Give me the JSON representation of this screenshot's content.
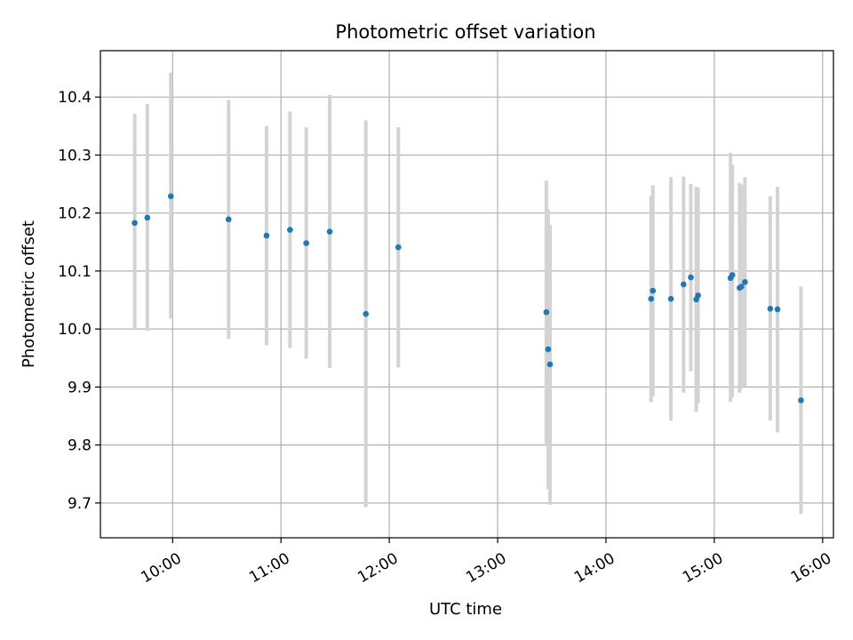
{
  "chart_data": {
    "type": "scatter",
    "title": "Photometric offset variation",
    "xlabel": "UTC time",
    "ylabel": "Photometric offset",
    "xlim": [
      "09:20",
      "16:06"
    ],
    "ylim": [
      9.64,
      10.48
    ],
    "x_ticks": [
      "10:00",
      "11:00",
      "12:00",
      "13:00",
      "14:00",
      "15:00",
      "16:00"
    ],
    "y_ticks": [
      9.7,
      9.8,
      9.9,
      10.0,
      10.1,
      10.2,
      10.3,
      10.4
    ],
    "y_tick_labels": [
      "9.7",
      "9.8",
      "9.9",
      "10.0",
      "10.1",
      "10.2",
      "10.3",
      "10.4"
    ],
    "grid": true,
    "colors": {
      "point": "#1f77b4",
      "errorbar": "#d3d3d3",
      "grid": "#b0b0b0"
    },
    "points": [
      {
        "x": "09:39",
        "y": 10.183,
        "low": 9.998,
        "high": 10.371
      },
      {
        "x": "09:46",
        "y": 10.192,
        "low": 9.997,
        "high": 10.388
      },
      {
        "x": "09:59",
        "y": 10.229,
        "low": 10.018,
        "high": 10.442
      },
      {
        "x": "10:31",
        "y": 10.189,
        "low": 9.983,
        "high": 10.395
      },
      {
        "x": "10:52",
        "y": 10.161,
        "low": 9.972,
        "high": 10.35
      },
      {
        "x": "11:05",
        "y": 10.171,
        "low": 9.967,
        "high": 10.375
      },
      {
        "x": "11:14",
        "y": 10.148,
        "low": 9.949,
        "high": 10.348
      },
      {
        "x": "11:27",
        "y": 10.168,
        "low": 9.933,
        "high": 10.404
      },
      {
        "x": "11:47",
        "y": 10.026,
        "low": 9.693,
        "high": 10.36
      },
      {
        "x": "12:05",
        "y": 10.141,
        "low": 9.934,
        "high": 10.348
      },
      {
        "x": "13:27",
        "y": 10.029,
        "low": 9.802,
        "high": 10.256
      },
      {
        "x": "13:28",
        "y": 9.965,
        "low": 9.724,
        "high": 10.207
      },
      {
        "x": "13:29",
        "y": 9.939,
        "low": 9.697,
        "high": 10.18
      },
      {
        "x": "14:25",
        "y": 10.052,
        "low": 9.874,
        "high": 10.23
      },
      {
        "x": "14:26",
        "y": 10.066,
        "low": 9.884,
        "high": 10.248
      },
      {
        "x": "14:36",
        "y": 10.052,
        "low": 9.842,
        "high": 10.262
      },
      {
        "x": "14:43",
        "y": 10.077,
        "low": 9.89,
        "high": 10.263
      },
      {
        "x": "14:47",
        "y": 10.089,
        "low": 9.927,
        "high": 10.25
      },
      {
        "x": "14:50",
        "y": 10.051,
        "low": 9.857,
        "high": 10.245
      },
      {
        "x": "14:51",
        "y": 10.058,
        "low": 9.872,
        "high": 10.244
      },
      {
        "x": "15:09",
        "y": 10.088,
        "low": 9.874,
        "high": 10.304
      },
      {
        "x": "15:10",
        "y": 10.093,
        "low": 9.882,
        "high": 10.283
      },
      {
        "x": "15:14",
        "y": 10.071,
        "low": 9.89,
        "high": 10.252
      },
      {
        "x": "15:15",
        "y": 10.073,
        "low": 9.897,
        "high": 10.249
      },
      {
        "x": "15:17",
        "y": 10.081,
        "low": 9.9,
        "high": 10.262
      },
      {
        "x": "15:31",
        "y": 10.035,
        "low": 9.842,
        "high": 10.229
      },
      {
        "x": "15:35",
        "y": 10.034,
        "low": 9.822,
        "high": 10.245
      },
      {
        "x": "15:48",
        "y": 9.877,
        "low": 9.681,
        "high": 10.073
      }
    ]
  }
}
